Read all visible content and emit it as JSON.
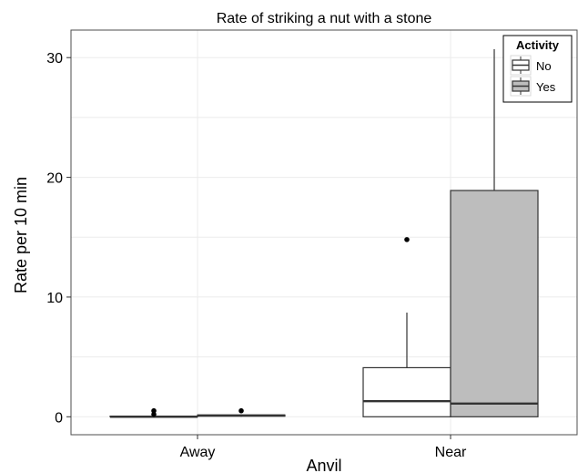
{
  "chart_data": {
    "type": "boxplot",
    "title": "Rate of striking a nut with a stone",
    "xlabel": "Anvil",
    "ylabel": "Rate per 10 min",
    "ylim": [
      -1.5,
      32.3
    ],
    "yticks": [
      0,
      10,
      20,
      30
    ],
    "grid": true,
    "legend_position": "top-right",
    "categories": [
      "Away",
      "Near"
    ],
    "legend": {
      "title": "Activity"
    },
    "series": [
      {
        "name": "No",
        "color": "#ffffff",
        "boxes": [
          {
            "category": "Away",
            "min": 0,
            "q1": 0,
            "median": 0,
            "q3": 0.05,
            "max": 0.1,
            "outliers": [
              0.2,
              0.5
            ]
          },
          {
            "category": "Near",
            "min": 0,
            "q1": 0,
            "median": 1.3,
            "q3": 4.1,
            "max": 8.7,
            "outliers": [
              14.8
            ]
          }
        ]
      },
      {
        "name": "Yes",
        "color": "#bdbdbd",
        "boxes": [
          {
            "category": "Away",
            "min": 0,
            "q1": 0.05,
            "median": 0.1,
            "q3": 0.15,
            "max": 0.2,
            "outliers": [
              0.5
            ]
          },
          {
            "category": "Near",
            "min": 0,
            "q1": 0,
            "median": 1.1,
            "q3": 18.9,
            "max": 30.7,
            "outliers": []
          }
        ]
      }
    ]
  }
}
